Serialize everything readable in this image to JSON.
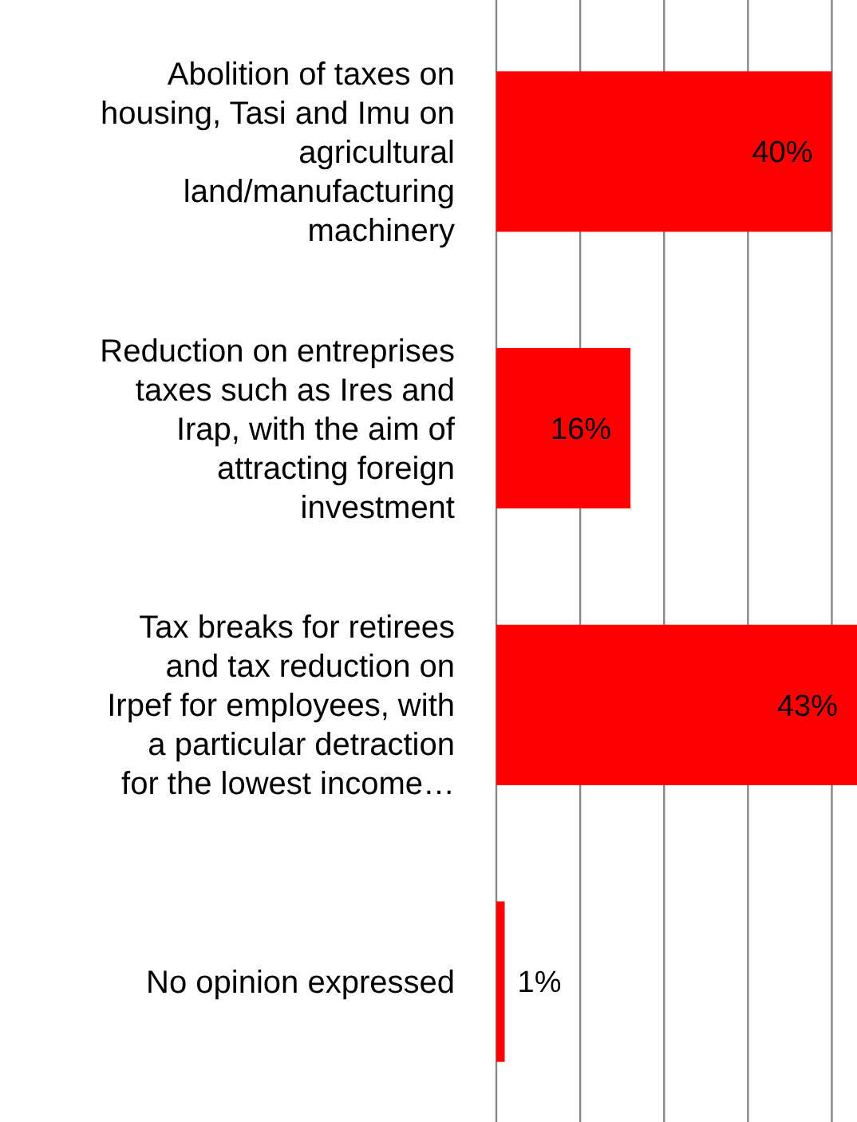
{
  "chart_data": {
    "type": "bar",
    "orientation": "horizontal",
    "categories": [
      "Abolition of taxes on housing, Tasi and Imu on agricultural land/manufacturing machinery",
      "Reduction on entreprises taxes such as Ires and Irap, with the aim of attracting foreign investment",
      "Tax breaks for retirees and tax reduction on Irpef for employees, with a particular detraction for the lowest income…",
      "No opinion expressed"
    ],
    "values": [
      40,
      16,
      43,
      1
    ],
    "color": "#ff0000",
    "value_labels": [
      "40%",
      "16%",
      "43%",
      "1%"
    ],
    "xlim": [
      0,
      43
    ],
    "xticks": [
      {
        "value": 0,
        "label": null
      },
      {
        "value": 10,
        "label": null
      },
      {
        "value": 20,
        "label": null
      },
      {
        "value": 30,
        "label": null
      },
      {
        "value": 40,
        "label": null
      }
    ],
    "grid": "x"
  }
}
